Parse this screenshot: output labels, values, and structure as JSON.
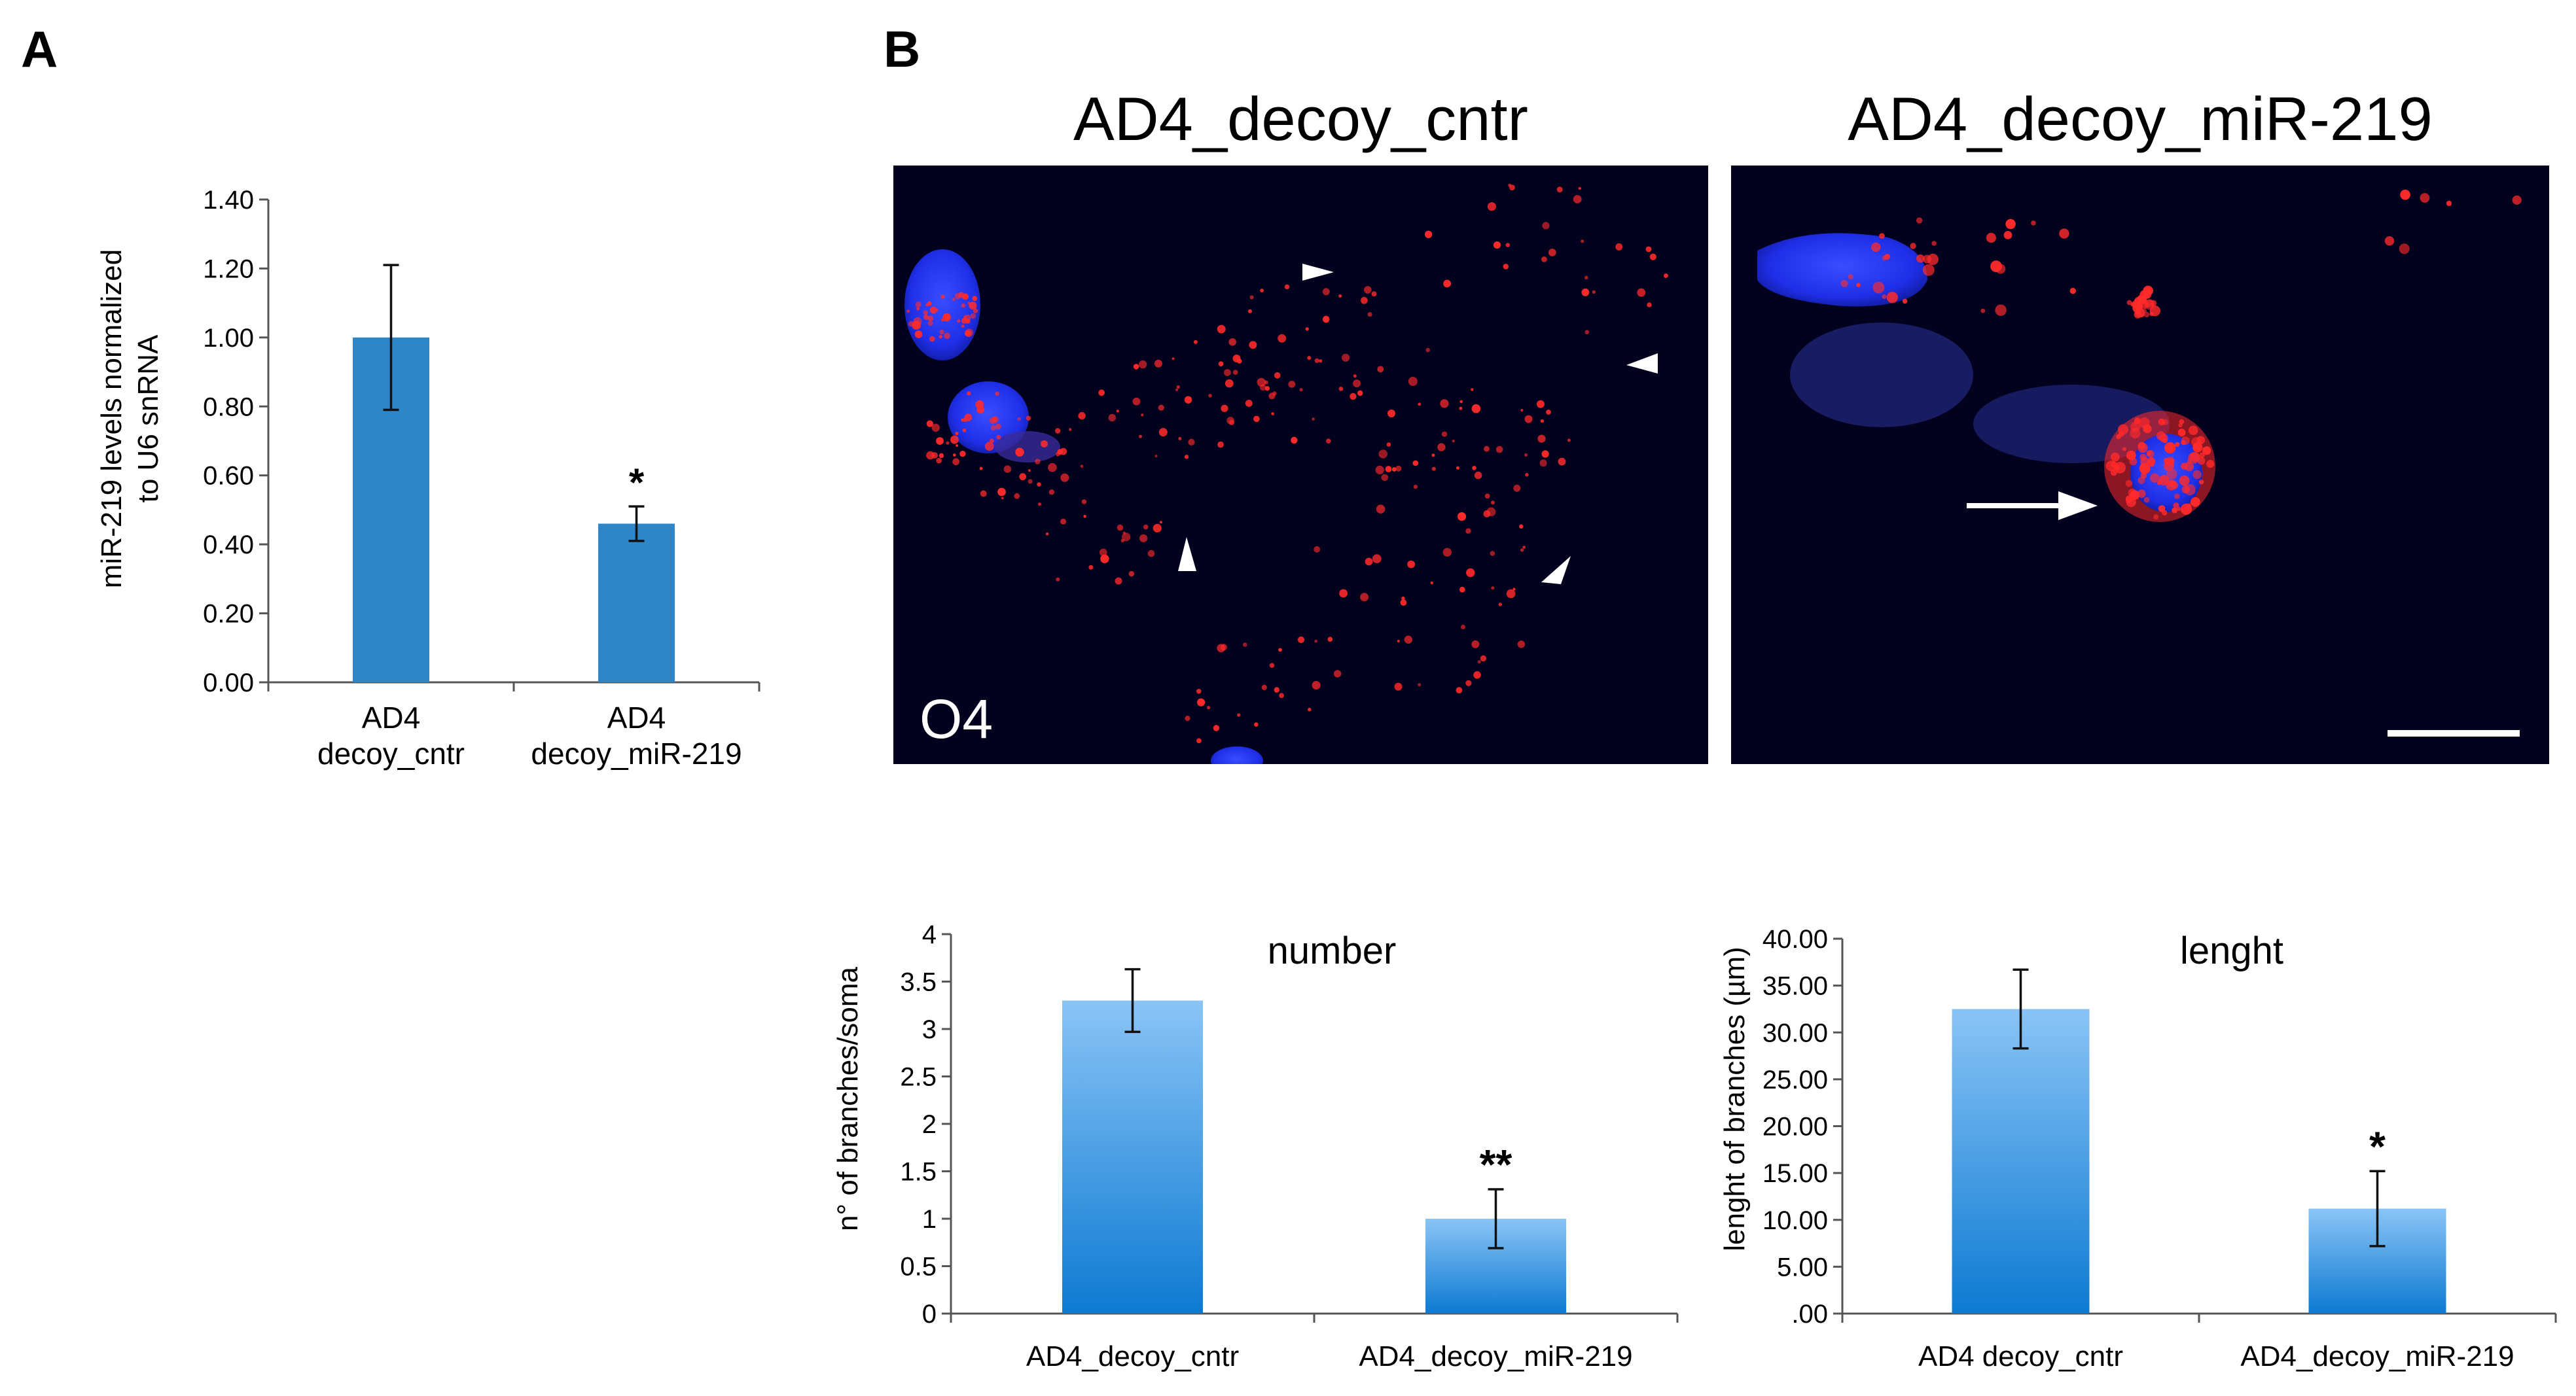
{
  "panels": {
    "a_letter": "A",
    "b_letter": "B"
  },
  "micrographs": {
    "left_title": "AD4_decoy_cntr",
    "right_title": "AD4_decoy_miR-219",
    "left_label": "O4"
  },
  "colors": {
    "bar_chart_a": "#2e86c8",
    "bar_gradient_top": "#8ac4f6",
    "bar_gradient_bottom": "#0d7ad2",
    "micrograph_background": "#02021e",
    "nucleus_stain": "#2233ff",
    "puncta_stain": "#ff2a2a"
  },
  "chart_data": [
    {
      "type": "bar",
      "panel": "A",
      "categories": [
        "AD4\ndecoy_cntr",
        "AD4\ndecoy_miR-219"
      ],
      "values": [
        1.0,
        0.46
      ],
      "errors": [
        0.21,
        0.05
      ],
      "significance": [
        "",
        "*"
      ],
      "ylabel": "miR-219 levels normalized\nto U6 snRNA",
      "ylim": [
        0,
        1.4
      ],
      "yticks": [
        "0.00",
        "0.20",
        "0.40",
        "0.60",
        "0.80",
        "1.00",
        "1.20",
        "1.40"
      ]
    },
    {
      "type": "bar",
      "panel": "B-number",
      "title": "number",
      "categories": [
        "AD4_decoy_cntr",
        "AD4_decoy_miR-219"
      ],
      "values": [
        3.3,
        1.0
      ],
      "errors": [
        0.33,
        0.31
      ],
      "significance": [
        "",
        "**"
      ],
      "ylabel": "n° of branches/soma",
      "ylim": [
        0,
        4
      ],
      "yticks": [
        "0",
        "0.5",
        "1",
        "1.5",
        "2",
        "2.5",
        "3",
        "3.5",
        "4"
      ]
    },
    {
      "type": "bar",
      "panel": "B-length",
      "title": "lenght",
      "categories": [
        "AD4 decoy_cntr",
        "AD4_decoy_miR-219"
      ],
      "values": [
        32.5,
        11.2
      ],
      "errors": [
        4.2,
        4.0
      ],
      "significance": [
        "",
        "*"
      ],
      "ylabel": "lenght of branches (µm)",
      "ylim": [
        0,
        40
      ],
      "yticks": [
        ".00",
        "5.00",
        "10.00",
        "15.00",
        "20.00",
        "25.00",
        "30.00",
        "35.00",
        "40.00"
      ]
    }
  ]
}
